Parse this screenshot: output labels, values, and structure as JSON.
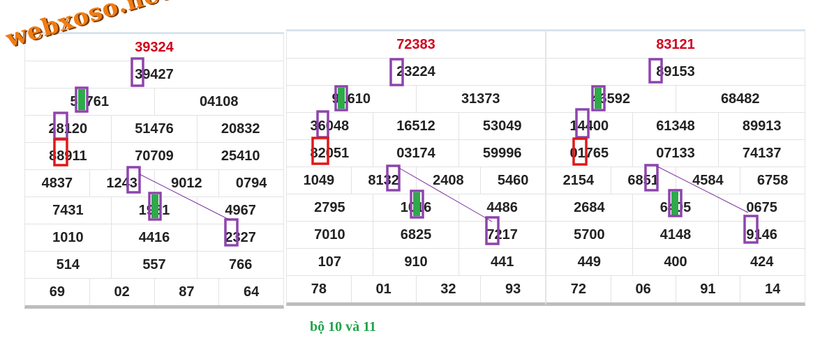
{
  "watermark": "webxoso.net",
  "panels": [
    {
      "rows": [
        [
          "39324"
        ],
        [
          "39427"
        ],
        [
          "58761",
          "04108"
        ],
        [
          "28120",
          "51476",
          "20832"
        ],
        [
          "88911",
          "70709",
          "25410"
        ],
        [
          "4837",
          "1243",
          "9012",
          "0794"
        ],
        [
          "7431",
          "1981",
          "4967"
        ],
        [
          "1010",
          "4416",
          "2327"
        ],
        [
          "514",
          "557",
          "766"
        ],
        [
          "69",
          "02",
          "87",
          "64"
        ]
      ]
    },
    {
      "rows": [
        [
          "72383"
        ],
        [
          "23224"
        ],
        [
          "91610",
          "31373"
        ],
        [
          "36048",
          "16512",
          "53049"
        ],
        [
          "82051",
          "03174",
          "59996"
        ],
        [
          "1049",
          "8132",
          "2408",
          "5460"
        ],
        [
          "2795",
          "1016",
          "4486"
        ],
        [
          "7010",
          "6825",
          "7217"
        ],
        [
          "107",
          "910",
          "441"
        ],
        [
          "78",
          "01",
          "32",
          "93"
        ]
      ]
    },
    {
      "rows": [
        [
          "83121"
        ],
        [
          "89153"
        ],
        [
          "46592",
          "68482"
        ],
        [
          "14400",
          "61348",
          "89913"
        ],
        [
          "01765",
          "07133",
          "74137"
        ],
        [
          "2154",
          "6851",
          "4584",
          "6758"
        ],
        [
          "2684",
          "6405",
          "0675"
        ],
        [
          "5700",
          "4148",
          "9146"
        ],
        [
          "449",
          "400",
          "424"
        ],
        [
          "72",
          "06",
          "91",
          "14"
        ]
      ]
    }
  ],
  "caption": "bộ 10 và 11"
}
